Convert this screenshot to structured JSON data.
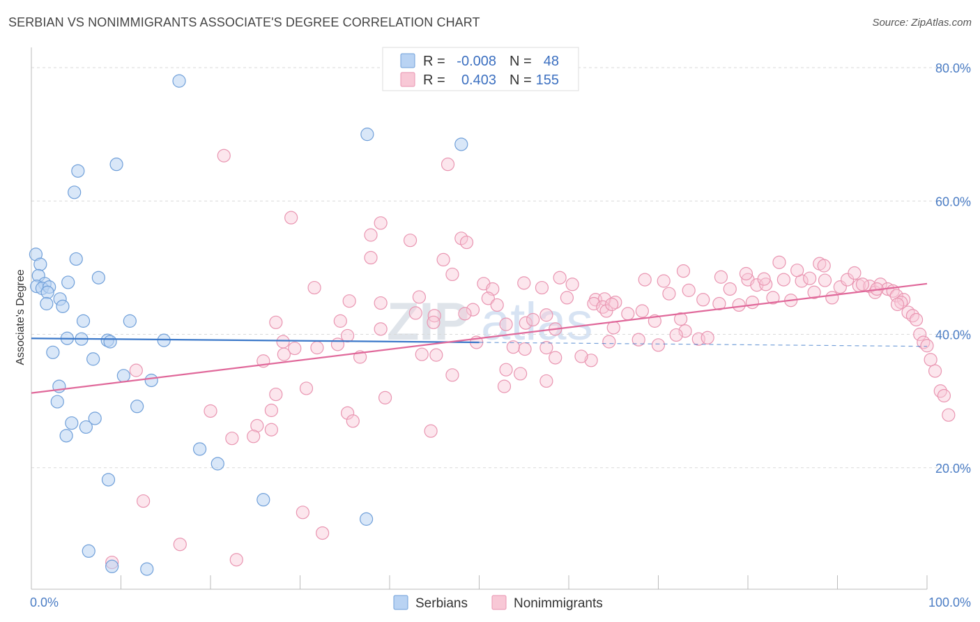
{
  "title": "SERBIAN VS NONIMMIGRANTS ASSOCIATE'S DEGREE CORRELATION CHART",
  "source": "Source: ZipAtlas.com",
  "watermark": {
    "zip": "ZIP",
    "atlas": "atlas"
  },
  "legend": {
    "r_label": "R =",
    "n_label": "N =",
    "rows": [
      {
        "name": "Serbians",
        "r": "-0.008",
        "n": "48",
        "fill": "#b9d3f3",
        "stroke": "#6f9fd9"
      },
      {
        "name": "Nonimmigrants",
        "r": "0.403",
        "n": "155",
        "fill": "#f8c8d6",
        "stroke": "#e995b1"
      }
    ]
  },
  "chart_data": {
    "type": "scatter",
    "title": "SERBIAN VS NONIMMIGRANTS ASSOCIATE'S DEGREE CORRELATION CHART",
    "xlabel": "",
    "ylabel": "Associate's Degree",
    "xlim": [
      0,
      100
    ],
    "ylim": [
      0,
      80
    ],
    "x_tick_labels": [
      "0.0%",
      "100.0%"
    ],
    "y_ticks": [
      20,
      40,
      60,
      80
    ],
    "y_tick_labels": [
      "20.0%",
      "40.0%",
      "60.0%",
      "80.0%"
    ],
    "grid": true,
    "legend_position": "top-center",
    "colors": {
      "serbians": "#3b78c9",
      "nonimmigrants": "#e0689a"
    },
    "series": [
      {
        "name": "Serbians",
        "trend": {
          "x0": 0,
          "y0": 39.4,
          "x1": 50,
          "y1": 38.8,
          "dashed_to": 100
        },
        "points": [
          [
            16.5,
            78
          ],
          [
            37.5,
            70
          ],
          [
            48,
            68.5
          ],
          [
            9.5,
            65.5
          ],
          [
            5.2,
            64.5
          ],
          [
            4.8,
            61.3
          ],
          [
            0.5,
            52
          ],
          [
            1,
            50.5
          ],
          [
            5,
            51.3
          ],
          [
            0.8,
            48.8
          ],
          [
            1.5,
            47.6
          ],
          [
            0.6,
            47.2
          ],
          [
            1.2,
            46.9
          ],
          [
            2,
            47.1
          ],
          [
            4.1,
            47.8
          ],
          [
            7.5,
            48.5
          ],
          [
            1.8,
            46.3
          ],
          [
            1.7,
            44.6
          ],
          [
            3.2,
            45.3
          ],
          [
            3.5,
            44.2
          ],
          [
            5.8,
            42
          ],
          [
            11,
            42
          ],
          [
            4,
            39.4
          ],
          [
            5.6,
            39.3
          ],
          [
            8.5,
            39.1
          ],
          [
            8.8,
            38.9
          ],
          [
            14.8,
            39.1
          ],
          [
            2.4,
            37.3
          ],
          [
            6.9,
            36.3
          ],
          [
            10.3,
            33.8
          ],
          [
            13.4,
            33.1
          ],
          [
            3.1,
            32.2
          ],
          [
            2.9,
            29.9
          ],
          [
            11.8,
            29.2
          ],
          [
            7.1,
            27.4
          ],
          [
            4.5,
            26.7
          ],
          [
            6.1,
            26.1
          ],
          [
            3.9,
            24.8
          ],
          [
            18.8,
            22.8
          ],
          [
            20.8,
            20.6
          ],
          [
            8.6,
            18.2
          ],
          [
            25.9,
            15.2
          ],
          [
            37.4,
            12.3
          ],
          [
            6.4,
            7.5
          ],
          [
            9,
            5.2
          ],
          [
            12.9,
            4.8
          ]
        ]
      },
      {
        "name": "Nonimmigrants",
        "trend": {
          "x0": 0,
          "y0": 31.2,
          "x1": 100,
          "y1": 47.6
        },
        "points": [
          [
            21.5,
            66.8
          ],
          [
            46.5,
            65.5
          ],
          [
            29,
            57.5
          ],
          [
            39,
            56.7
          ],
          [
            37.9,
            54.9
          ],
          [
            42.3,
            54.1
          ],
          [
            48,
            54.4
          ],
          [
            48.6,
            53.8
          ],
          [
            37.9,
            51.5
          ],
          [
            46,
            51.2
          ],
          [
            47,
            49
          ],
          [
            31.6,
            47
          ],
          [
            50.5,
            47.6
          ],
          [
            51.5,
            46.8
          ],
          [
            57,
            47
          ],
          [
            59,
            48.5
          ],
          [
            55,
            47.7
          ],
          [
            43.3,
            45.6
          ],
          [
            35.5,
            45
          ],
          [
            39,
            44.7
          ],
          [
            51,
            45.4
          ],
          [
            59.8,
            45.5
          ],
          [
            63,
            45.2
          ],
          [
            64,
            45.3
          ],
          [
            65.2,
            44.8
          ],
          [
            62.8,
            44.6
          ],
          [
            63.8,
            44.1
          ],
          [
            64.2,
            43.5
          ],
          [
            66.6,
            43.1
          ],
          [
            68.2,
            43.5
          ],
          [
            52,
            44.4
          ],
          [
            49.3,
            43.7
          ],
          [
            42.9,
            43.2
          ],
          [
            45,
            42.8
          ],
          [
            48.4,
            43.1
          ],
          [
            57.5,
            42.9
          ],
          [
            34.5,
            42
          ],
          [
            27.3,
            41.8
          ],
          [
            55.2,
            41.7
          ],
          [
            53,
            41.5
          ],
          [
            56,
            42.2
          ],
          [
            69.6,
            42
          ],
          [
            72.5,
            42.3
          ],
          [
            73,
            40.5
          ],
          [
            74.5,
            39.3
          ],
          [
            75.5,
            39.5
          ],
          [
            58.5,
            40.8
          ],
          [
            65,
            41
          ],
          [
            72,
            39.9
          ],
          [
            77,
            48.6
          ],
          [
            80,
            48.2
          ],
          [
            78,
            46.8
          ],
          [
            81,
            47.4
          ],
          [
            82,
            47.5
          ],
          [
            84,
            48.2
          ],
          [
            86,
            48
          ],
          [
            79,
            44.4
          ],
          [
            80.5,
            44.8
          ],
          [
            82.8,
            45.5
          ],
          [
            84.8,
            45.1
          ],
          [
            76.8,
            44.6
          ],
          [
            75,
            45.2
          ],
          [
            72.8,
            49.5
          ],
          [
            79.8,
            49.1
          ],
          [
            81.8,
            48.3
          ],
          [
            83.5,
            50.8
          ],
          [
            85.5,
            49.6
          ],
          [
            86.9,
            48.4
          ],
          [
            88.6,
            48.1
          ],
          [
            90.3,
            47.1
          ],
          [
            88,
            50.6
          ],
          [
            88.5,
            50.3
          ],
          [
            87.4,
            46.3
          ],
          [
            89.4,
            45.5
          ],
          [
            91.1,
            48.2
          ],
          [
            91.9,
            49.2
          ],
          [
            92.4,
            47.3
          ],
          [
            93.6,
            47.2
          ],
          [
            94.2,
            46.3
          ],
          [
            94.8,
            47.5
          ],
          [
            95.6,
            46.8
          ],
          [
            96.2,
            46.5
          ],
          [
            96.6,
            45.8
          ],
          [
            97.4,
            45.2
          ],
          [
            97.1,
            44.8
          ],
          [
            94.4,
            46.8
          ],
          [
            92.8,
            47.5
          ],
          [
            97.9,
            43.3
          ],
          [
            98.4,
            42.8
          ],
          [
            98.8,
            42.2
          ],
          [
            96.7,
            44.5
          ],
          [
            99.2,
            40
          ],
          [
            99.6,
            38.8
          ],
          [
            100,
            38.3
          ],
          [
            100.4,
            36.2
          ],
          [
            100.9,
            34.5
          ],
          [
            101.5,
            31.5
          ],
          [
            101.9,
            30.8
          ],
          [
            102.4,
            27.9
          ],
          [
            62.5,
            36.1
          ],
          [
            61.4,
            36.7
          ],
          [
            58.5,
            36.5
          ],
          [
            57.5,
            38
          ],
          [
            55.1,
            37.8
          ],
          [
            53.8,
            38.1
          ],
          [
            67.8,
            39.2
          ],
          [
            70,
            38.4
          ],
          [
            64.5,
            38.9
          ],
          [
            35.3,
            39.8
          ],
          [
            36.7,
            36.6
          ],
          [
            34.2,
            38.5
          ],
          [
            29.4,
            37.9
          ],
          [
            31.9,
            38
          ],
          [
            28.1,
            38.9
          ],
          [
            25.9,
            36
          ],
          [
            28.2,
            37
          ],
          [
            43.6,
            37
          ],
          [
            45.2,
            36.9
          ],
          [
            47,
            33.9
          ],
          [
            53,
            34.7
          ],
          [
            54.6,
            34.1
          ],
          [
            52.8,
            32.2
          ],
          [
            57.5,
            33
          ],
          [
            49.7,
            38.8
          ],
          [
            44.9,
            41.8
          ],
          [
            39,
            40.8
          ],
          [
            30.7,
            31.9
          ],
          [
            27.3,
            31
          ],
          [
            26.8,
            28.6
          ],
          [
            25.2,
            26.3
          ],
          [
            26.8,
            25.7
          ],
          [
            24.8,
            24.7
          ],
          [
            22.4,
            24.4
          ],
          [
            20,
            28.5
          ],
          [
            35.3,
            28.2
          ],
          [
            35.9,
            27
          ],
          [
            39.5,
            30.5
          ],
          [
            44.6,
            25.5
          ],
          [
            11.7,
            34.6
          ],
          [
            12.5,
            15
          ],
          [
            16.6,
            8.5
          ],
          [
            22.9,
            6.2
          ],
          [
            9,
            5.8
          ],
          [
            30.3,
            13.3
          ],
          [
            32.5,
            10.2
          ],
          [
            64.8,
            44.5
          ],
          [
            60.4,
            47.5
          ],
          [
            68.5,
            48.2
          ],
          [
            70.6,
            48
          ],
          [
            73.4,
            46.6
          ],
          [
            71.2,
            46.1
          ]
        ]
      }
    ]
  }
}
